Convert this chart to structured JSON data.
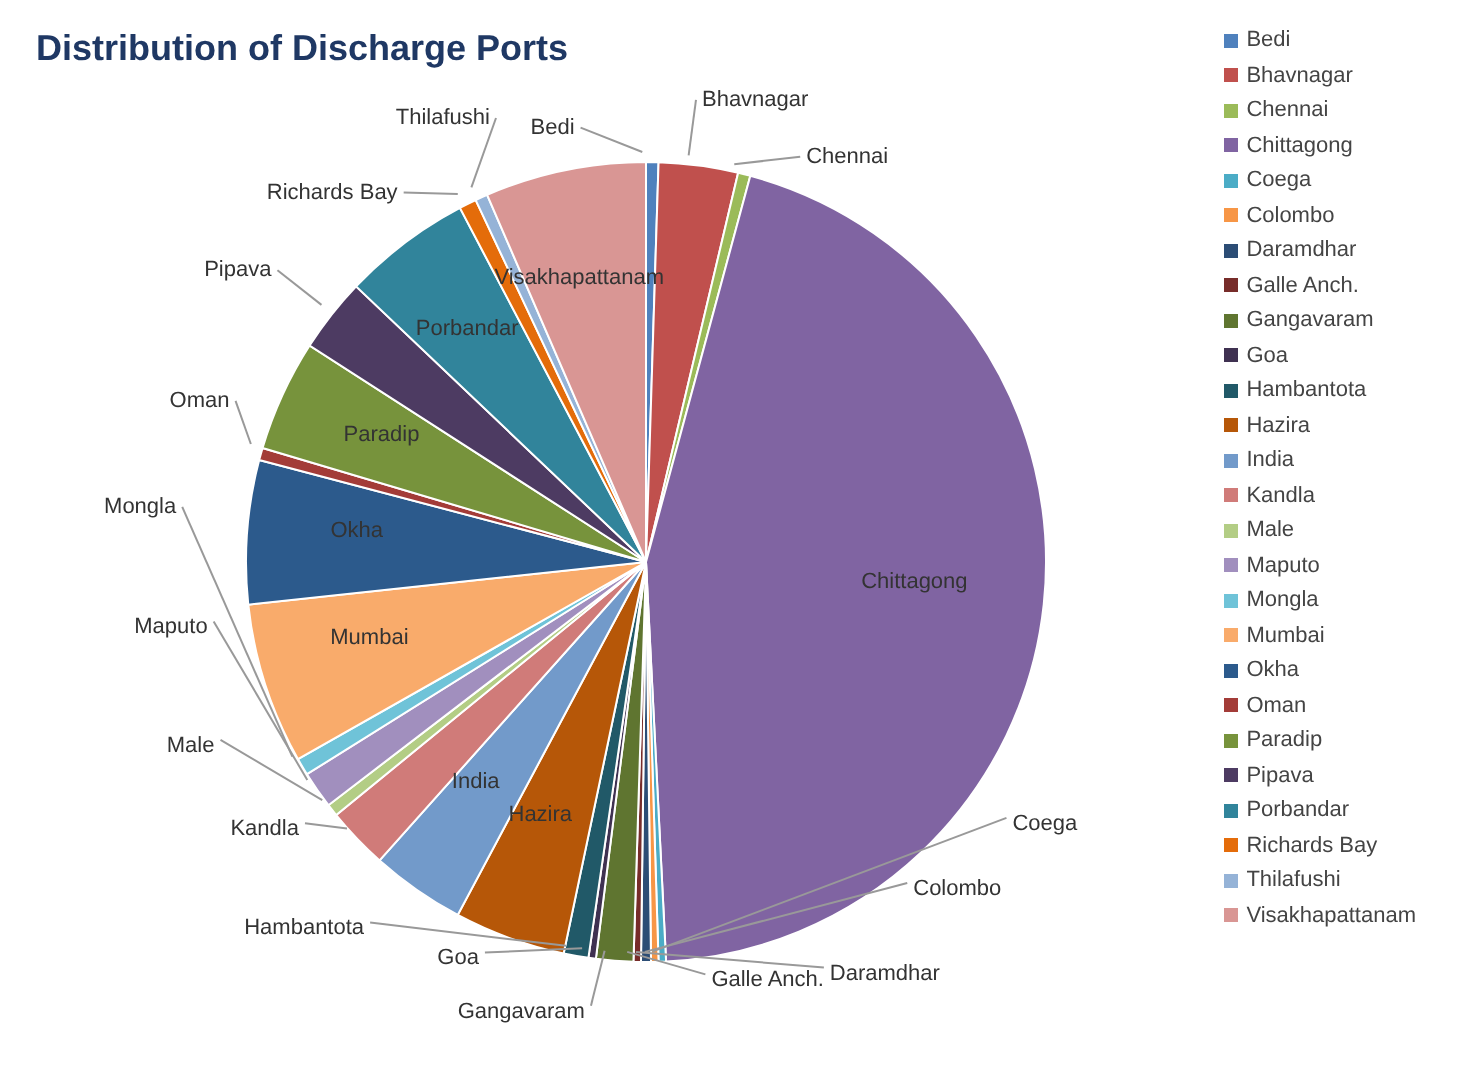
{
  "chart_data": {
    "type": "pie",
    "title": "Distribution of Discharge Ports",
    "categories": [
      "Bedi",
      "Bhavnagar",
      "Chennai",
      "Chittagong",
      "Coega",
      "Colombo",
      "Daramdhar",
      "Galle Anch.",
      "Gangavaram",
      "Goa",
      "Hambantota",
      "Hazira",
      "India",
      "Kandla",
      "Male",
      "Maputo",
      "Mongla",
      "Mumbai",
      "Okha",
      "Oman",
      "Paradip",
      "Pipava",
      "Porbandar",
      "Richards Bay",
      "Thilafushi",
      "Visakhapattanam"
    ],
    "values": [
      0.5,
      3.2,
      0.5,
      45,
      0.3,
      0.3,
      0.4,
      0.3,
      1.5,
      0.3,
      1,
      4.5,
      3.8,
      2.5,
      0.5,
      1.5,
      0.7,
      6.5,
      5.8,
      0.5,
      4.5,
      3,
      5.2,
      0.7,
      0.5,
      6.5
    ],
    "colors": [
      "#4f81bd",
      "#c0504d",
      "#9bbb59",
      "#8064a2",
      "#4bacc6",
      "#f79646",
      "#2c4d75",
      "#772c2a",
      "#5f7530",
      "#3f3151",
      "#215968",
      "#b65708",
      "#729aca",
      "#d07b79",
      "#b3cd85",
      "#a18fbe",
      "#6fc3d8",
      "#f9ab6b",
      "#2c5a8c",
      "#a33c38",
      "#77933c",
      "#4d3b62",
      "#31849b",
      "#e46c0a",
      "#95b3d7",
      "#d99694"
    ],
    "legend": "right"
  }
}
